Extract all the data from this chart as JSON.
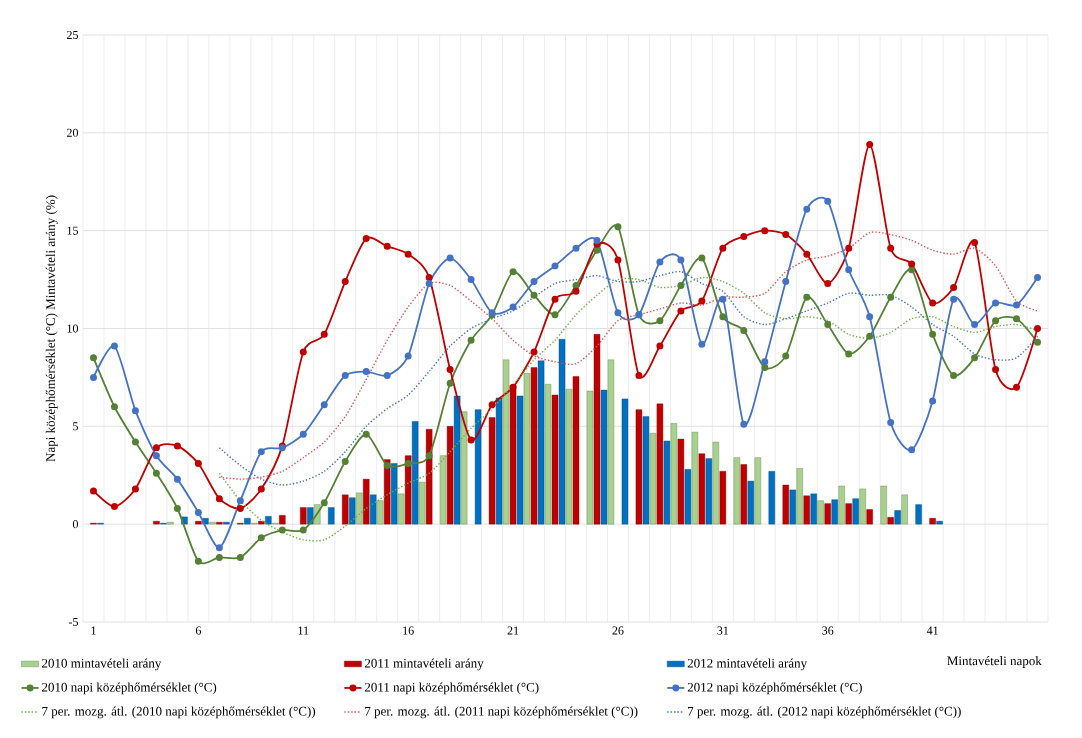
{
  "chart_data": {
    "type": "bar",
    "ylabel": "Napi középhőmérséklet (°C) Mintavételi arány (%)",
    "xlabel": "Mintavételi napok",
    "categories": [
      "1",
      null,
      null,
      null,
      null,
      "6",
      null,
      null,
      null,
      null,
      "11",
      null,
      null,
      null,
      null,
      "16",
      null,
      null,
      null,
      null,
      "21",
      null,
      null,
      null,
      null,
      "26",
      null,
      null,
      null,
      null,
      "31",
      null,
      null,
      null,
      null,
      "36",
      null,
      null,
      null,
      null,
      "41",
      null,
      null,
      null,
      null,
      null
    ],
    "ylim": [
      -5,
      25
    ],
    "yticks": [
      -5,
      0,
      5,
      10,
      15,
      20,
      25
    ],
    "grid": true,
    "legend": "bottom",
    "series": [
      {
        "name": "2010 mintavételi arány",
        "color": "#a9d18e",
        "values": [
          null,
          null,
          null,
          null,
          0.1,
          null,
          0.1,
          null,
          0.05,
          0.05,
          null,
          1.0,
          null,
          1.6,
          1.2,
          1.55,
          2.15,
          3.5,
          5.75,
          null,
          8.4,
          7.7,
          7.15,
          6.9,
          6.8,
          8.4,
          null,
          4.65,
          5.15,
          4.7,
          4.2,
          3.4,
          3.4,
          null,
          2.85,
          1.2,
          1.95,
          1.8,
          1.95,
          1.5,
          null,
          null,
          null,
          null,
          null,
          null
        ]
      },
      {
        "name": "2011 mintavételi arány",
        "color": "#c00000",
        "values": [
          0.05,
          null,
          null,
          0.15,
          null,
          0.15,
          0.1,
          0.05,
          0.15,
          0.45,
          0.85,
          null,
          1.5,
          2.3,
          3.3,
          3.5,
          4.85,
          5.0,
          null,
          5.45,
          7.1,
          8.0,
          6.6,
          7.55,
          9.7,
          null,
          5.85,
          6.15,
          4.35,
          3.6,
          2.7,
          3.05,
          null,
          2.0,
          1.45,
          1.05,
          1.05,
          0.75,
          0.35,
          null,
          0.3,
          null,
          null,
          null,
          null,
          null
        ]
      },
      {
        "name": "2012 mintavételi arány",
        "color": "#0070c0",
        "values": [
          0.05,
          null,
          null,
          0.05,
          0.37,
          0.3,
          0.1,
          0.3,
          0.4,
          null,
          0.85,
          0.85,
          1.35,
          1.5,
          3.1,
          5.25,
          null,
          6.55,
          5.85,
          6.45,
          6.55,
          8.35,
          9.45,
          null,
          6.85,
          6.4,
          5.5,
          4.25,
          2.8,
          3.35,
          null,
          2.2,
          2.7,
          1.75,
          1.55,
          1.25,
          1.3,
          null,
          0.7,
          1.0,
          0.15,
          null,
          null,
          null,
          null,
          null
        ]
      },
      {
        "name": "2010 napi középhőmérséklet (°C)",
        "type": "line",
        "marker": "circle",
        "color": "#548235",
        "values": [
          8.5,
          6.0,
          4.2,
          2.6,
          0.8,
          -1.9,
          -1.7,
          -1.7,
          -0.7,
          -0.3,
          -0.3,
          1.1,
          3.2,
          4.6,
          3.0,
          3.1,
          3.5,
          7.2,
          9.4,
          10.7,
          12.9,
          11.7,
          10.7,
          12.2,
          14.0,
          15.2,
          10.7,
          10.4,
          12.2,
          13.6,
          10.6,
          9.9,
          8.0,
          8.6,
          11.6,
          10.2,
          8.7,
          9.6,
          11.6,
          13.0,
          9.7,
          7.6,
          8.5,
          10.4,
          10.5,
          9.3
        ]
      },
      {
        "name": "2011 napi középhőmérséklet (°C)",
        "type": "line",
        "marker": "circle",
        "color": "#c00000",
        "values": [
          1.7,
          0.9,
          1.8,
          3.9,
          4.0,
          3.1,
          1.3,
          0.8,
          1.8,
          4.0,
          8.8,
          9.7,
          12.4,
          14.6,
          14.2,
          13.8,
          12.6,
          7.9,
          4.3,
          6.1,
          7.0,
          8.8,
          11.5,
          11.9,
          14.3,
          13.5,
          7.6,
          9.1,
          10.9,
          11.4,
          14.1,
          14.7,
          15.0,
          14.8,
          13.8,
          12.3,
          14.1,
          19.4,
          14.1,
          13.3,
          11.3,
          12.1,
          14.4,
          7.9,
          7.0,
          10.0
        ]
      },
      {
        "name": "2012 napi középhőmérséklet (°C)",
        "type": "line",
        "marker": "circle",
        "color": "#4472c4",
        "values": [
          7.5,
          9.1,
          5.8,
          3.5,
          2.3,
          0.6,
          -1.2,
          1.2,
          3.7,
          3.9,
          4.6,
          6.1,
          7.6,
          7.8,
          7.6,
          8.6,
          12.3,
          13.6,
          12.5,
          10.8,
          11.1,
          12.4,
          13.2,
          14.1,
          14.5,
          10.8,
          10.7,
          13.4,
          13.5,
          9.2,
          11.5,
          5.1,
          8.3,
          12.4,
          16.1,
          16.5,
          13.0,
          10.6,
          5.2,
          3.8,
          6.3,
          11.5,
          10.2,
          11.3,
          11.2,
          12.6
        ]
      },
      {
        "name": "7 per. mozg. átl. (2010 napi középhőmérséklet (°C))",
        "type": "line",
        "marker": "none",
        "line_style": "dotted",
        "color": "#70ad47",
        "values": [
          null,
          null,
          null,
          null,
          null,
          null,
          2.6,
          1.2,
          0.2,
          -0.4,
          -0.8,
          -0.8,
          -0.1,
          0.8,
          1.5,
          2.1,
          2.6,
          3.7,
          4.9,
          5.9,
          7.1,
          8.4,
          9.4,
          10.7,
          11.7,
          12.5,
          12.5,
          12.1,
          12.2,
          12.6,
          12.4,
          11.8,
          10.8,
          10.5,
          10.6,
          10.4,
          9.7,
          9.5,
          9.8,
          10.5,
          10.6,
          10.1,
          9.8,
          10.1,
          10.2,
          9.9
        ]
      },
      {
        "name": "7 per. mozg. átl. (2011 napi középhőmérséklet (°C))",
        "type": "line",
        "marker": "none",
        "line_style": "dotted",
        "color": "#e05050",
        "values": [
          null,
          null,
          null,
          null,
          null,
          null,
          2.4,
          2.3,
          2.4,
          2.7,
          3.4,
          4.2,
          5.5,
          7.4,
          9.4,
          11.1,
          12.3,
          12.2,
          11.4,
          10.5,
          9.4,
          8.6,
          8.3,
          8.2,
          9.1,
          10.4,
          10.7,
          11.0,
          11.3,
          11.2,
          11.6,
          11.6,
          11.8,
          12.9,
          13.5,
          13.7,
          14.1,
          14.9,
          14.8,
          14.5,
          14.0,
          13.8,
          14.1,
          13.2,
          11.4,
          10.9
        ]
      },
      {
        "name": "7 per. mozg. átl. (2012 napi középhőmérséklet (°C))",
        "type": "line",
        "marker": "none",
        "line_style": "dotted",
        "color": "#4472c4",
        "values": [
          null,
          null,
          null,
          null,
          null,
          null,
          3.9,
          3.0,
          2.3,
          2.0,
          2.2,
          2.7,
          3.7,
          5.0,
          5.9,
          6.6,
          7.8,
          9.1,
          10.0,
          10.5,
          10.9,
          11.6,
          12.3,
          12.5,
          12.7,
          12.4,
          12.4,
          12.7,
          12.9,
          12.3,
          11.9,
          10.6,
          10.2,
          10.5,
          10.9,
          11.3,
          11.8,
          11.7,
          11.7,
          11.1,
          10.2,
          9.6,
          8.7,
          8.4,
          8.5,
          9.6
        ]
      }
    ]
  }
}
